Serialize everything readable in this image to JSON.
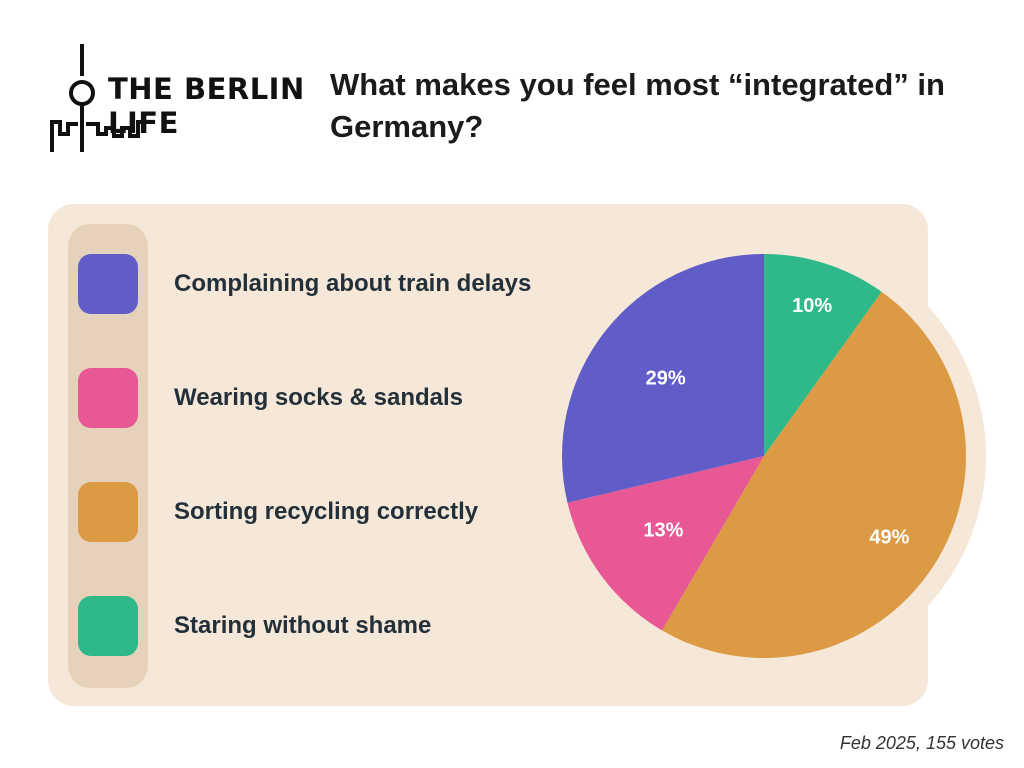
{
  "logo": {
    "line1": "THE BERLIN",
    "line2": "LIFE"
  },
  "title": "What makes you feel most “integrated” in Germany?",
  "footnote": "Feb 2025, 155 votes",
  "colors": {
    "panel": "#f6e8d8",
    "rail": "#e6d2bb",
    "purple": "#615dc8",
    "pink": "#e85895",
    "orange": "#dd9a44",
    "green": "#2fb98a"
  },
  "chart_data": {
    "type": "pie",
    "categories": [
      "Complaining about train delays",
      "Wearing socks & sandals",
      "Sorting recycling correctly",
      "Staring without shame"
    ],
    "values": [
      29,
      13,
      49,
      10
    ],
    "labels": [
      "29%",
      "13%",
      "49%",
      "10%"
    ],
    "colors": [
      "#615dc8",
      "#e85895",
      "#dd9a44",
      "#2fb98a"
    ],
    "slice_order": [
      "Staring without shame",
      "Sorting recycling correctly",
      "Wearing socks & sandals",
      "Complaining about train delays"
    ],
    "legend_placement": "left"
  }
}
